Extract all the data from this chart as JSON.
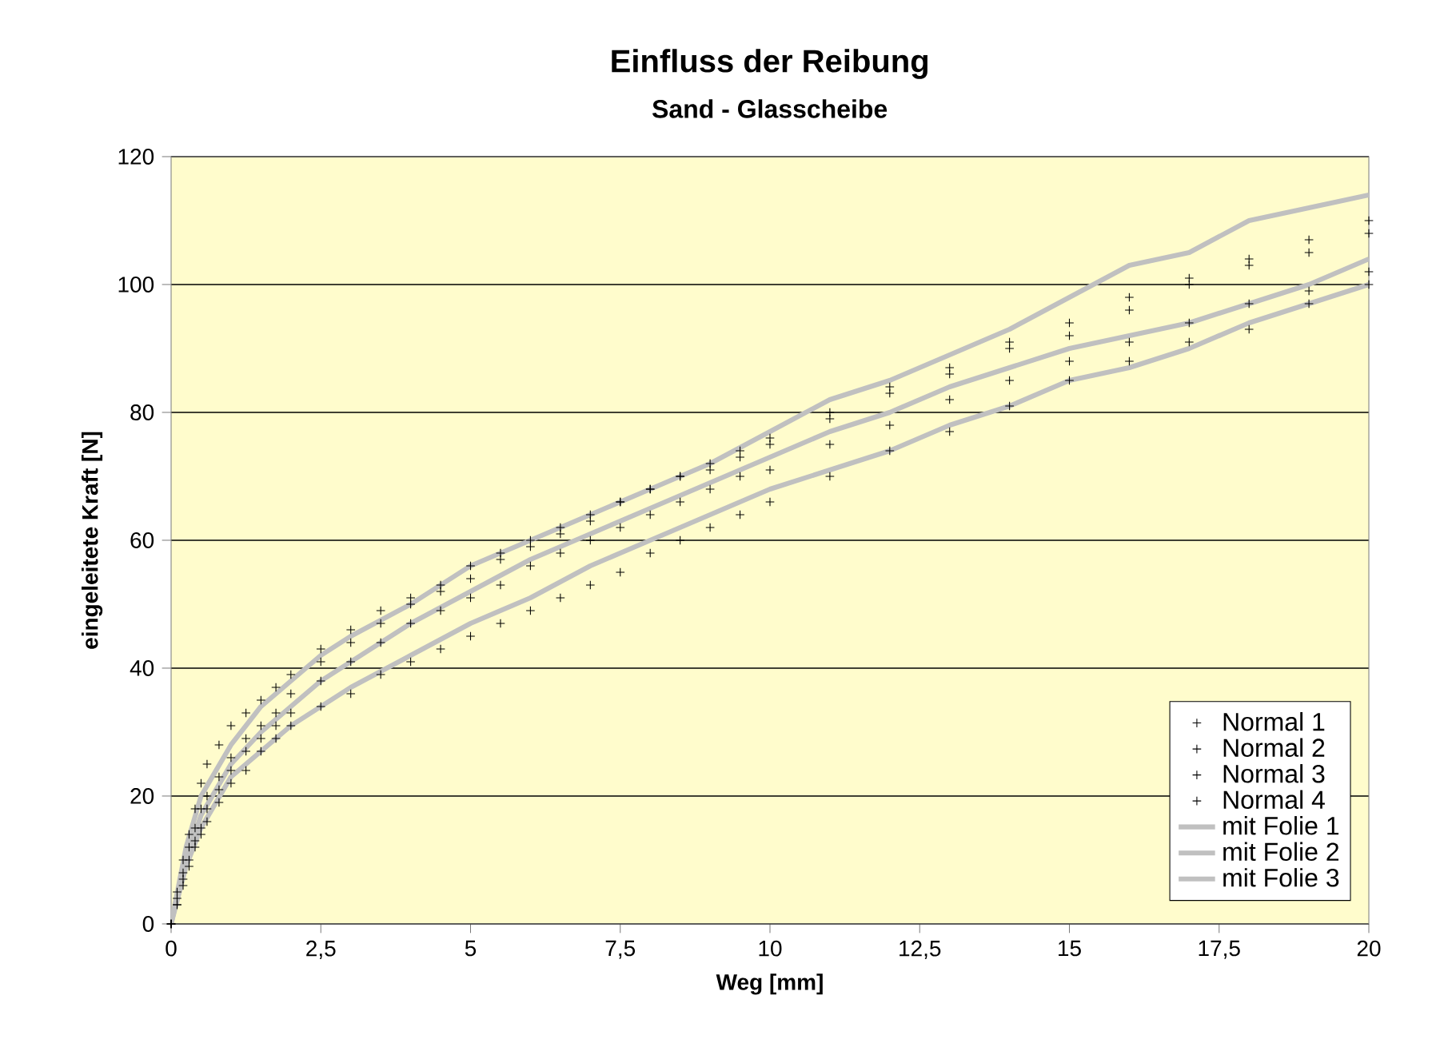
{
  "chart_data": {
    "type": "scatter",
    "title": "Einfluss der Reibung",
    "subtitle": "Sand - Glasscheibe",
    "xlabel": "Weg [mm]",
    "ylabel": "eingeleitete Kraft [N]",
    "xlim": [
      0,
      20
    ],
    "ylim": [
      0,
      120
    ],
    "xticks": [
      0,
      {
        "value": 2.5,
        "label": "2,5"
      },
      5,
      {
        "value": 7.5,
        "label": "7,5"
      },
      10,
      {
        "value": 12.5,
        "label": "12,5"
      },
      15,
      {
        "value": 17.5,
        "label": "17,5"
      },
      20
    ],
    "yticks": [
      0,
      20,
      40,
      60,
      80,
      100,
      120
    ],
    "grid": "y",
    "legend": "bottom right",
    "series": [
      {
        "name": "Normal 1",
        "marker": "cross",
        "color": "#000000",
        "x": [
          0,
          0.1,
          0.2,
          0.3,
          0.4,
          0.5,
          0.6,
          0.8,
          1,
          1.25,
          1.5,
          1.75,
          2,
          2.5,
          3,
          3.5,
          4,
          4.5,
          5,
          5.5,
          6,
          6.5,
          7,
          7.5,
          8,
          8.5,
          9,
          9.5,
          10,
          11,
          12,
          13,
          14,
          15,
          16,
          17,
          18,
          19,
          20
        ],
        "values": [
          0,
          5,
          10,
          14,
          18,
          22,
          25,
          28,
          31,
          33,
          35,
          37,
          39,
          43,
          46,
          49,
          51,
          53,
          56,
          58,
          60,
          62,
          64,
          66,
          68,
          70,
          72,
          74,
          76,
          80,
          84,
          87,
          91,
          94,
          98,
          101,
          104,
          107,
          110
        ]
      },
      {
        "name": "Normal 2",
        "marker": "cross",
        "color": "#000000",
        "x": [
          0,
          0.1,
          0.2,
          0.3,
          0.4,
          0.5,
          0.6,
          0.8,
          1,
          1.25,
          1.5,
          1.75,
          2,
          2.5,
          3,
          3.5,
          4,
          4.5,
          5,
          5.5,
          6,
          6.5,
          7,
          7.5,
          8,
          8.5,
          9,
          9.5,
          10,
          11,
          12,
          13,
          14,
          15,
          16,
          17,
          18,
          19,
          20
        ],
        "values": [
          0,
          4,
          8,
          12,
          15,
          18,
          20,
          23,
          26,
          29,
          31,
          33,
          36,
          41,
          44,
          47,
          50,
          52,
          54,
          57,
          59,
          61,
          63,
          66,
          68,
          70,
          71,
          73,
          75,
          79,
          83,
          86,
          90,
          92,
          96,
          100,
          103,
          105,
          108
        ]
      },
      {
        "name": "Normal 3",
        "marker": "cross",
        "color": "#000000",
        "x": [
          0,
          0.1,
          0.2,
          0.3,
          0.4,
          0.5,
          0.6,
          0.8,
          1,
          1.25,
          1.5,
          1.75,
          2,
          2.5,
          3,
          3.5,
          4,
          4.5,
          5,
          5.5,
          6,
          6.5,
          7,
          7.5,
          8,
          8.5,
          9,
          9.5,
          10,
          11,
          12,
          13,
          14,
          15,
          16,
          17,
          18,
          19,
          20
        ],
        "values": [
          0,
          3,
          7,
          10,
          13,
          15,
          18,
          21,
          24,
          27,
          29,
          31,
          33,
          38,
          41,
          44,
          47,
          49,
          51,
          53,
          56,
          58,
          60,
          62,
          64,
          66,
          68,
          70,
          71,
          75,
          78,
          82,
          85,
          88,
          91,
          94,
          97,
          99,
          102
        ]
      },
      {
        "name": "Normal 4",
        "marker": "cross",
        "color": "#000000",
        "x": [
          0,
          0.1,
          0.2,
          0.3,
          0.4,
          0.5,
          0.6,
          0.8,
          1,
          1.25,
          1.5,
          1.75,
          2,
          2.5,
          3,
          3.5,
          4,
          4.5,
          5,
          5.5,
          6,
          6.5,
          7,
          7.5,
          8,
          8.5,
          9,
          9.5,
          10,
          11,
          12,
          13,
          14,
          15,
          16,
          17,
          18,
          19,
          20
        ],
        "values": [
          0,
          3,
          6,
          9,
          12,
          14,
          16,
          19,
          22,
          24,
          27,
          29,
          31,
          34,
          36,
          39,
          41,
          43,
          45,
          47,
          49,
          51,
          53,
          55,
          58,
          60,
          62,
          64,
          66,
          70,
          74,
          77,
          81,
          85,
          88,
          91,
          93,
          97,
          100
        ]
      },
      {
        "name": "mit Folie 1",
        "type": "line",
        "color": "#c0c0c0",
        "x": [
          0,
          0.25,
          0.5,
          1,
          1.5,
          2,
          2.5,
          3,
          4,
          5,
          6,
          7,
          8,
          9,
          10,
          11,
          12,
          13,
          14,
          15,
          16,
          17,
          18,
          19,
          20
        ],
        "values": [
          0,
          12,
          20,
          28,
          34,
          38,
          42,
          45,
          50,
          56,
          60,
          64,
          68,
          72,
          77,
          82,
          85,
          89,
          93,
          98,
          103,
          105,
          110,
          112,
          114
        ]
      },
      {
        "name": "mit Folie 2",
        "type": "line",
        "color": "#c0c0c0",
        "x": [
          0,
          0.25,
          0.5,
          1,
          1.5,
          2,
          2.5,
          3,
          4,
          5,
          6,
          7,
          8,
          9,
          10,
          11,
          12,
          13,
          14,
          15,
          16,
          17,
          18,
          19,
          20
        ],
        "values": [
          0,
          10,
          17,
          25,
          30,
          34,
          38,
          41,
          47,
          52,
          57,
          61,
          65,
          69,
          73,
          77,
          80,
          84,
          87,
          90,
          92,
          94,
          97,
          100,
          104
        ]
      },
      {
        "name": "mit Folie 3",
        "type": "line",
        "color": "#c0c0c0",
        "x": [
          0,
          0.25,
          0.5,
          1,
          1.5,
          2,
          2.5,
          3,
          4,
          5,
          6,
          7,
          8,
          9,
          10,
          11,
          12,
          13,
          14,
          15,
          16,
          17,
          18,
          19,
          20
        ],
        "values": [
          0,
          9,
          15,
          23,
          27,
          31,
          34,
          37,
          42,
          47,
          51,
          56,
          60,
          64,
          68,
          71,
          74,
          78,
          81,
          85,
          87,
          90,
          94,
          97,
          100
        ]
      }
    ]
  }
}
